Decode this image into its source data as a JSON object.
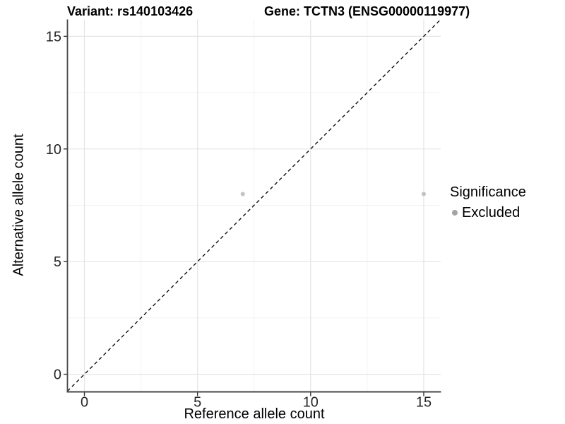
{
  "chart_data": {
    "type": "scatter",
    "titles": {
      "left": "Variant: rs140103426",
      "right": "Gene: TCTN3 (ENSG00000119977)"
    },
    "xlabel": "Reference allele count",
    "ylabel": "Alternative allele count",
    "xlim": [
      -0.75,
      15.75
    ],
    "ylim": [
      -0.75,
      15.75
    ],
    "x_ticks": [
      0,
      5,
      10,
      15
    ],
    "y_ticks": [
      0,
      5,
      10,
      15
    ],
    "x_minor_ticks": [
      2.5,
      7.5,
      12.5
    ],
    "y_minor_ticks": [
      2.5,
      7.5,
      12.5
    ],
    "grid": true,
    "series": [
      {
        "name": "Excluded",
        "point_color": "#c4c4c4",
        "point_radius": 3.1,
        "points": [
          {
            "x": 7,
            "y": 8
          },
          {
            "x": 15,
            "y": 8
          }
        ]
      }
    ],
    "reference_line": {
      "style": "dashed",
      "slope": 1,
      "intercept": 0,
      "color": "#111111"
    },
    "legend": {
      "title": "Significance",
      "position": "right",
      "items": [
        {
          "label": "Excluded",
          "color": "#a4a4a4",
          "shape": "circle"
        }
      ]
    },
    "colors": {
      "background": "#ffffff",
      "grid_major": "#e4e4e4",
      "grid_minor": "#f1f1f1",
      "axis_line": "#474747",
      "tick_mark": "#333333",
      "tick_label": "#262626"
    }
  }
}
